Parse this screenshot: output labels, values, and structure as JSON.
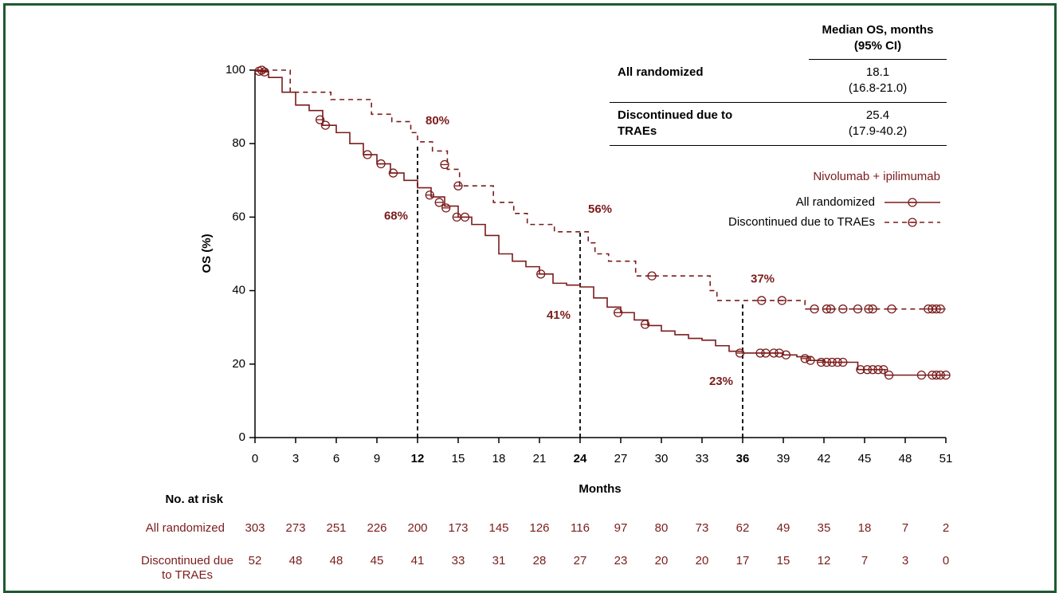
{
  "chart_data": {
    "type": "kaplan-meier",
    "xlabel": "Months",
    "ylabel": "OS (%)",
    "xlim": [
      0,
      51
    ],
    "ylim": [
      0,
      100
    ],
    "xticks": [
      0,
      3,
      6,
      9,
      12,
      15,
      18,
      21,
      24,
      27,
      30,
      33,
      36,
      39,
      42,
      45,
      48,
      51
    ],
    "yticks": [
      0,
      20,
      40,
      60,
      80,
      100
    ],
    "legend_title": "Nivolumab + ipilimumab",
    "series": [
      {
        "name": "All randomized",
        "color": "#7b1c1c",
        "style": "solid",
        "x": [
          0,
          0.5,
          1,
          2,
          3,
          4,
          5,
          6,
          7,
          8,
          9,
          10,
          11,
          12,
          13,
          14,
          15,
          16,
          17,
          18,
          19,
          20,
          21,
          22,
          23,
          24,
          25,
          26,
          27,
          28,
          29,
          30,
          31,
          32,
          33,
          34,
          35,
          36,
          39,
          40,
          41,
          42,
          44.5,
          46.5,
          51
        ],
        "values": [
          100,
          99.7,
          98,
          94,
          90.5,
          89,
          85,
          83,
          80,
          77,
          74.5,
          72,
          70,
          68,
          65.5,
          63,
          60,
          58,
          55,
          50,
          48,
          46.5,
          44.5,
          42,
          41.5,
          41,
          38,
          35.5,
          34,
          32,
          30.5,
          29,
          28,
          27,
          26.5,
          25,
          23.5,
          23,
          22.5,
          22,
          21,
          20.5,
          18.5,
          17,
          17
        ],
        "censored_x": [
          0.3,
          0.7,
          4.8,
          5.2,
          8.3,
          9.3,
          10.2,
          12.9,
          13.6,
          14.1,
          14.9,
          15.5,
          21.1,
          26.8,
          28.8,
          35.8,
          37.3,
          37.7,
          38.3,
          38.7,
          39.2,
          40.6,
          41,
          41.8,
          42.2,
          42.6,
          43,
          43.4,
          44.7,
          45.2,
          45.6,
          46,
          46.4,
          46.8,
          49.2,
          50,
          50.3,
          50.6,
          51
        ],
        "censored_values": [
          99.7,
          99.5,
          86.5,
          85,
          77,
          74.5,
          72,
          66,
          64,
          62.5,
          60,
          60,
          44.5,
          34,
          30.8,
          23,
          23,
          23,
          23,
          23,
          22.5,
          21.5,
          21,
          20.5,
          20.5,
          20.5,
          20.5,
          20.5,
          18.5,
          18.5,
          18.5,
          18.5,
          18.5,
          17,
          17,
          17,
          17,
          17,
          17
        ]
      },
      {
        "name": "Discontinued due to TRAEs",
        "color": "#7b1c1c",
        "style": "dashed",
        "x": [
          0,
          2.6,
          5.6,
          8.6,
          10.1,
          11.5,
          12,
          13.1,
          14.2,
          15.1,
          17.6,
          19.1,
          20.1,
          22.1,
          24.6,
          25.1,
          26.1,
          28.1,
          33.6,
          34.1,
          40.6,
          51
        ],
        "values": [
          100,
          94,
          92,
          88,
          86,
          83,
          80.5,
          78,
          73,
          68.5,
          64,
          61,
          58,
          56,
          53,
          50,
          48,
          44,
          40,
          37.3,
          35,
          35
        ],
        "censored_x": [
          0.5,
          14,
          15,
          29.3,
          37.4,
          38.9,
          41.3,
          42.2,
          42.5,
          43.4,
          44.5,
          45.3,
          45.6,
          47,
          49.7,
          50,
          50.3,
          50.6
        ],
        "censored_values": [
          100,
          74.3,
          68.5,
          44,
          37.3,
          37.3,
          35,
          35,
          35,
          35,
          35,
          35,
          35,
          35,
          35,
          35,
          35,
          35
        ]
      }
    ],
    "annotations": [
      {
        "x": 12,
        "value": 80,
        "label": "80%",
        "series": 1
      },
      {
        "x": 12,
        "value": 68,
        "label": "68%",
        "series": 0
      },
      {
        "x": 24,
        "value": 56,
        "label": "56%",
        "series": 1
      },
      {
        "x": 24,
        "value": 41,
        "label": "41%",
        "series": 0
      },
      {
        "x": 36,
        "value": 37,
        "label": "37%",
        "series": 1
      },
      {
        "x": 36,
        "value": 23,
        "label": "23%",
        "series": 0
      }
    ],
    "median_table": {
      "header": "Median OS, months (95% CI)",
      "rows": [
        {
          "name": "All randomized",
          "median": "18.1",
          "ci": "(16.8-21.0)"
        },
        {
          "name": "Discontinued due to TRAEs",
          "median": "25.4",
          "ci": "(17.9-40.2)"
        }
      ]
    },
    "risk_table": {
      "title": "No. at risk",
      "rows": [
        {
          "name": "All randomized",
          "values": [
            303,
            273,
            251,
            226,
            200,
            173,
            145,
            126,
            116,
            97,
            80,
            73,
            62,
            49,
            35,
            18,
            7,
            2
          ]
        },
        {
          "name": "Discontinued due to TRAEs",
          "values": [
            52,
            48,
            48,
            45,
            41,
            33,
            31,
            28,
            27,
            23,
            20,
            20,
            17,
            15,
            12,
            7,
            3,
            0
          ]
        }
      ]
    }
  }
}
